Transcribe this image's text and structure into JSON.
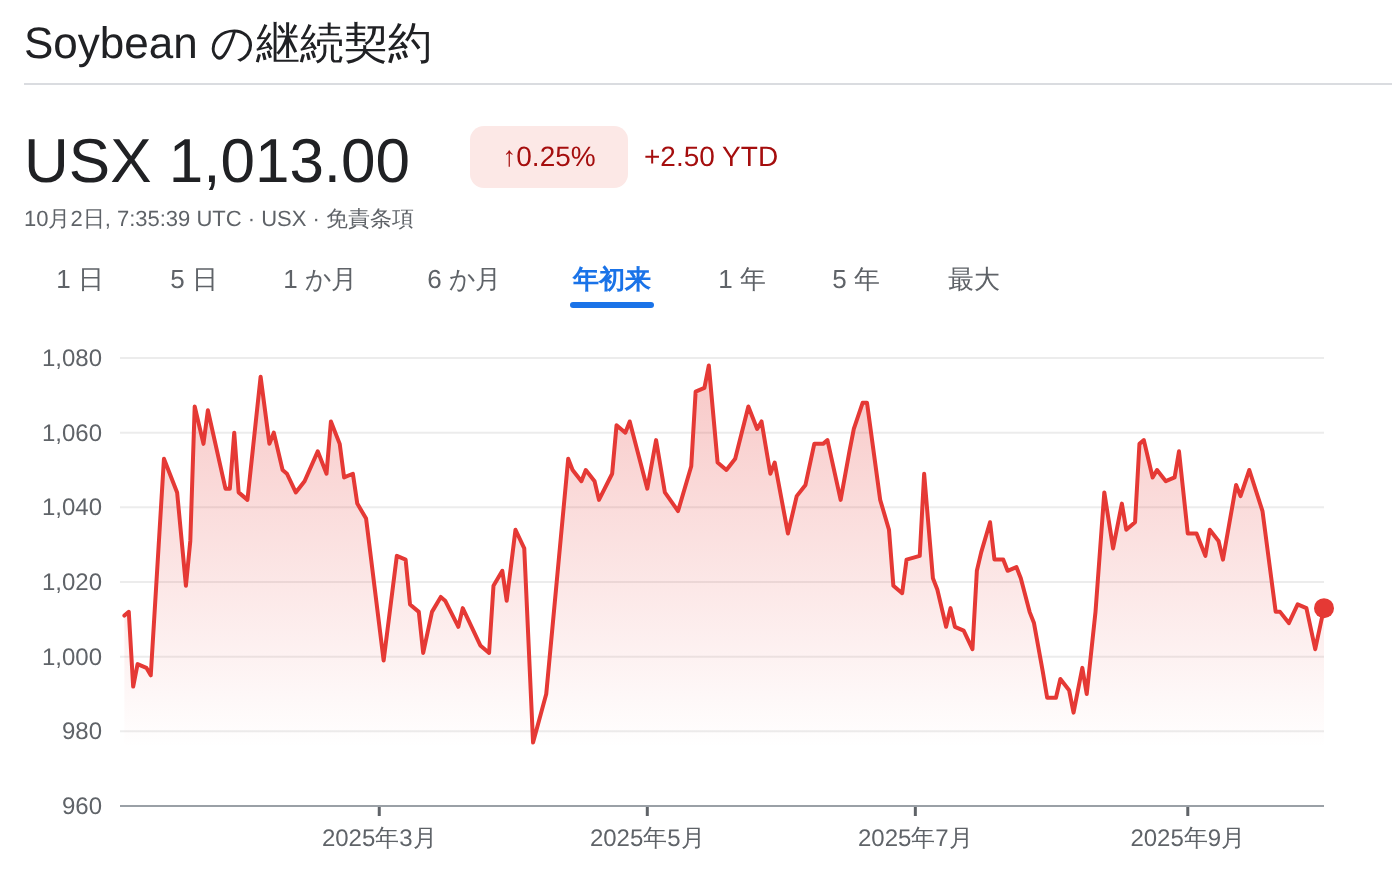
{
  "chart_data": {
    "type": "area",
    "title": "Soybean の継続契約",
    "subtitle": "10月2日, 7:35:39 UTC · USX · 免責条項",
    "annotations": [
      "USX 1,013.00",
      "↑0.25%",
      "+2.50 YTD",
      "1 日",
      "5 日",
      "1 か月",
      "6 か月",
      "年初来",
      "1 年",
      "5 年",
      "最大"
    ],
    "series": [
      {
        "color": "#e53935",
        "x": [
          "2025-01-02",
          "2025-01-03",
          "2025-01-04",
          "2025-01-05",
          "2025-01-07",
          "2025-01-08",
          "2025-01-11",
          "2025-01-13",
          "2025-01-14",
          "2025-01-16",
          "2025-01-17",
          "2025-01-18",
          "2025-01-20",
          "2025-01-21",
          "2025-01-25",
          "2025-01-26",
          "2025-01-27",
          "2025-01-28",
          "2025-01-30",
          "2025-02-02",
          "2025-02-04",
          "2025-02-05",
          "2025-02-07",
          "2025-02-08",
          "2025-02-10",
          "2025-02-12",
          "2025-02-15",
          "2025-02-17",
          "2025-02-18",
          "2025-02-20",
          "2025-02-21",
          "2025-02-23",
          "2025-02-24",
          "2025-02-26",
          "2025-03-02",
          "2025-03-05",
          "2025-03-07",
          "2025-03-08",
          "2025-03-10",
          "2025-03-11",
          "2025-03-13",
          "2025-03-15",
          "2025-03-16",
          "2025-03-19",
          "2025-03-20",
          "2025-03-24",
          "2025-03-26",
          "2025-03-27",
          "2025-03-29",
          "2025-03-30",
          "2025-04-01",
          "2025-04-03",
          "2025-04-05",
          "2025-04-08",
          "2025-04-13",
          "2025-04-14",
          "2025-04-16",
          "2025-04-17",
          "2025-04-19",
          "2025-04-20",
          "2025-04-23",
          "2025-04-24",
          "2025-04-26",
          "2025-04-27",
          "2025-05-01",
          "2025-05-03",
          "2025-05-05",
          "2025-05-08",
          "2025-05-11",
          "2025-05-12",
          "2025-05-14",
          "2025-05-15",
          "2025-05-17",
          "2025-05-19",
          "2025-05-21",
          "2025-05-24",
          "2025-05-26",
          "2025-05-27",
          "2025-05-29",
          "2025-05-30",
          "2025-06-02",
          "2025-06-04",
          "2025-06-06",
          "2025-06-08",
          "2025-06-10",
          "2025-06-11",
          "2025-06-14",
          "2025-06-16",
          "2025-06-17",
          "2025-06-19",
          "2025-06-20",
          "2025-06-23",
          "2025-06-25",
          "2025-06-26",
          "2025-06-28",
          "2025-06-29",
          "2025-07-02",
          "2025-07-03",
          "2025-07-05",
          "2025-07-06",
          "2025-07-08",
          "2025-07-09",
          "2025-07-10",
          "2025-07-12",
          "2025-07-14",
          "2025-07-15",
          "2025-07-16",
          "2025-07-18",
          "2025-07-19",
          "2025-07-21",
          "2025-07-22",
          "2025-07-24",
          "2025-07-25",
          "2025-07-27",
          "2025-07-28",
          "2025-07-30",
          "2025-07-31",
          "2025-08-02",
          "2025-08-03",
          "2025-08-05",
          "2025-08-06",
          "2025-08-08",
          "2025-08-09",
          "2025-08-11",
          "2025-08-13",
          "2025-08-15",
          "2025-08-17",
          "2025-08-18",
          "2025-08-20",
          "2025-08-21",
          "2025-08-22",
          "2025-08-24",
          "2025-08-25",
          "2025-08-27",
          "2025-08-29",
          "2025-08-30",
          "2025-09-01",
          "2025-09-03",
          "2025-09-05",
          "2025-09-06",
          "2025-09-08",
          "2025-09-09",
          "2025-09-12",
          "2025-09-13",
          "2025-09-15",
          "2025-09-18",
          "2025-09-21",
          "2025-09-22",
          "2025-09-24",
          "2025-09-26",
          "2025-09-28",
          "2025-09-30",
          "2025-10-02"
        ],
        "values": [
          1011,
          1012,
          992,
          998,
          997,
          995,
          1053,
          1047,
          1044,
          1019,
          1031,
          1067,
          1057,
          1066,
          1045,
          1045,
          1060,
          1044,
          1042,
          1075,
          1057,
          1060,
          1050,
          1049,
          1044,
          1047,
          1055,
          1049,
          1063,
          1057,
          1048,
          1049,
          1041,
          1037,
          999,
          1027,
          1026,
          1014,
          1012,
          1001,
          1012,
          1016,
          1015,
          1008,
          1013,
          1003,
          1001,
          1019,
          1023,
          1015,
          1034,
          1029,
          977,
          990,
          1053,
          1050,
          1047,
          1050,
          1047,
          1042,
          1049,
          1062,
          1060,
          1063,
          1045,
          1058,
          1044,
          1039,
          1051,
          1071,
          1072,
          1078,
          1052,
          1050,
          1053,
          1067,
          1061,
          1063,
          1049,
          1052,
          1033,
          1043,
          1046,
          1057,
          1057,
          1058,
          1042,
          1055,
          1061,
          1068,
          1068,
          1042,
          1034,
          1019,
          1017,
          1026,
          1027,
          1049,
          1021,
          1018,
          1008,
          1013,
          1008,
          1007,
          1002,
          1023,
          1028,
          1036,
          1026,
          1026,
          1023,
          1024,
          1021,
          1012,
          1009,
          996,
          989,
          989,
          994,
          991,
          985,
          997,
          990,
          1012,
          1044,
          1029,
          1041,
          1034,
          1036,
          1057,
          1058,
          1048,
          1050,
          1047,
          1048,
          1055,
          1033,
          1033,
          1027,
          1034,
          1031,
          1026,
          1046,
          1043,
          1050,
          1039,
          1012,
          1012,
          1009,
          1014,
          1013,
          1002,
          1013
        ]
      },
      {
        "type": "scatter",
        "color": "#e53935",
        "x": [
          "2025-10-02"
        ],
        "values": [
          1013
        ]
      }
    ],
    "xlim": [
      "2025-01-01",
      "2025-10-02"
    ],
    "xticks": [
      {
        "value": "2025-03-01",
        "label": "2025年3月"
      },
      {
        "value": "2025-05-01",
        "label": "2025年5月"
      },
      {
        "value": "2025-07-01",
        "label": "2025年7月"
      },
      {
        "value": "2025-09-01",
        "label": "2025年9月"
      }
    ],
    "ylim": [
      960,
      1080
    ],
    "yticks": [
      {
        "value": 960,
        "label": "960"
      },
      {
        "value": 980,
        "label": "980"
      },
      {
        "value": 1000,
        "label": "1,000"
      },
      {
        "value": 1020,
        "label": "1,020"
      },
      {
        "value": 1040,
        "label": "1,040"
      },
      {
        "value": 1060,
        "label": "1,060"
      },
      {
        "value": 1080,
        "label": "1,080"
      }
    ],
    "grid": "y"
  }
}
